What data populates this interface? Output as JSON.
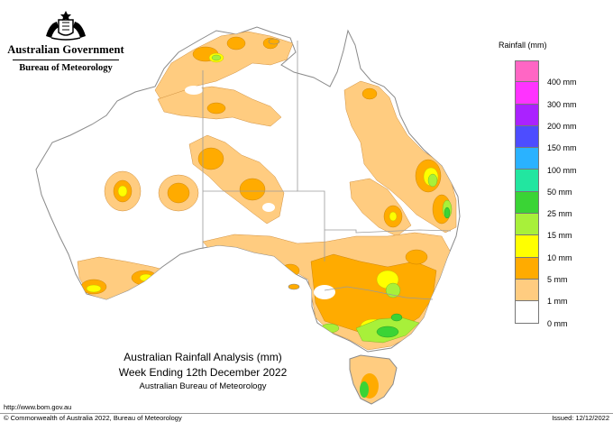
{
  "header": {
    "government": "Australian Government",
    "bureau": "Bureau of Meteorology"
  },
  "legend": {
    "title": "Rainfall (mm)",
    "classes": [
      {
        "label": "",
        "color": "#ff66c4"
      },
      {
        "label": "400 mm",
        "color": "#ff33ff"
      },
      {
        "label": "300 mm",
        "color": "#aa22ff"
      },
      {
        "label": "200 mm",
        "color": "#4d4dff"
      },
      {
        "label": "150 mm",
        "color": "#2ab2ff"
      },
      {
        "label": "100 mm",
        "color": "#22e6a0"
      },
      {
        "label": "50 mm",
        "color": "#3ad435"
      },
      {
        "label": "25 mm",
        "color": "#a8f03a"
      },
      {
        "label": "15 mm",
        "color": "#ffff00"
      },
      {
        "label": "10 mm",
        "color": "#ffab00"
      },
      {
        "label": "5 mm",
        "color": "#ffcc80"
      },
      {
        "label": "1 mm",
        "color": "#ffffff"
      },
      {
        "label": "0 mm",
        "color": ""
      }
    ]
  },
  "caption": {
    "line1": "Australian Rainfall Analysis (mm)",
    "line2": "Week Ending 12th December 2022",
    "line3": "Australian Bureau of Meteorology"
  },
  "footer": {
    "url": "http://www.bom.gov.au",
    "copyright": "© Commonwealth of Australia 2022, Bureau of Meteorology",
    "issued": "Issued: 12/12/2022"
  },
  "colors": {
    "outline": "#8a8a8a",
    "boundary": "#9a9a9a"
  }
}
